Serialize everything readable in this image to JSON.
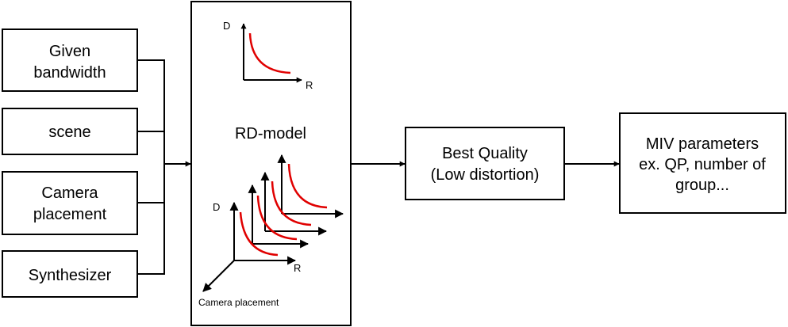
{
  "inputs": {
    "given_bandwidth": [
      "Given",
      "bandwidth"
    ],
    "scene": "scene",
    "camera_placement": [
      "Camera",
      "placement"
    ],
    "synthesizer": "Synthesizer"
  },
  "rd_model": {
    "title": "RD-model",
    "small_graph": {
      "y_label": "D",
      "x_label": "R"
    },
    "big_graph": {
      "y_label": "D",
      "x_label": "R",
      "z_label": "Camera placement"
    }
  },
  "best_quality": [
    "Best Quality",
    "(Low distortion)"
  ],
  "miv_parameters": [
    "MIV parameters",
    "ex. QP, number of",
    "group..."
  ],
  "colors": {
    "curve": "#e00000",
    "stroke": "#000000"
  }
}
